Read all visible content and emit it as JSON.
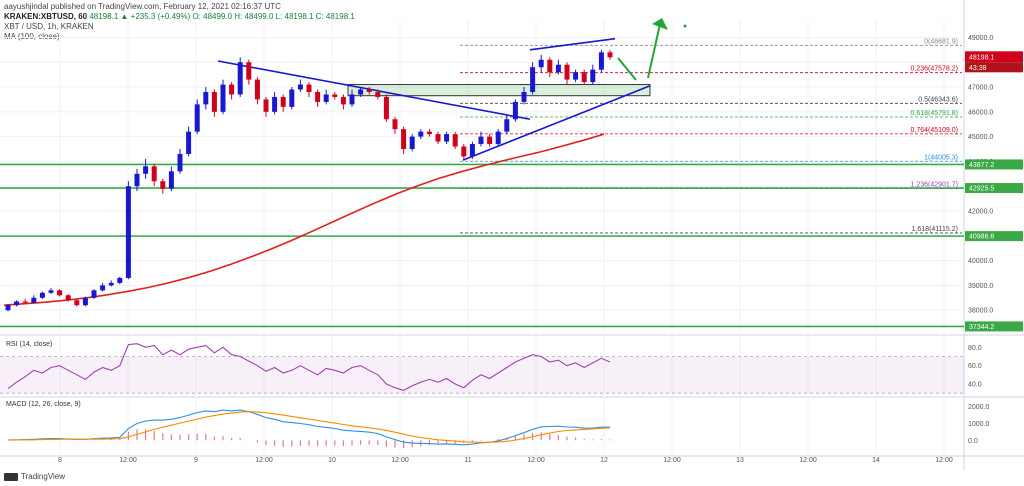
{
  "header": {
    "publisher": "aayushjindal published on TradingView.com, February 12, 2021 02:16:37 UTC",
    "symbol_line": "KRAKEN:XBTUSD, 60",
    "change": "48198.1 ▲ +235.3 (+0.49%) O: 48499.0 H: 48499.0 L: 48198.1 C: 48198.1",
    "title": "XBT / USD, 1h, KRAKEN",
    "ma_label": "MA (100, close)"
  },
  "footer": {
    "brand": "TradingView"
  },
  "colors": {
    "up": "#1a17d1",
    "down": "#d0021b",
    "ma": "#e02020",
    "trend": "#1a17d1",
    "support": "#3aa845",
    "arrow": "#22a63a",
    "rsi": "#a040b0",
    "macd": "#2f8fe0",
    "signal": "#ff8a00",
    "fib": "#888888"
  },
  "chart_data": [
    {
      "type": "candlestick",
      "title": "XBT / USD, 1h, KRAKEN",
      "x_ticks": [
        "8",
        "12:00",
        "9",
        "12:00",
        "10",
        "12:00",
        "11",
        "12:00",
        "12",
        "12:00",
        "13",
        "12:00",
        "14",
        "12:00"
      ],
      "y_ticks": [
        38000.0,
        39000.0,
        40000.0,
        41000.0,
        42000.0,
        43000.0,
        44000.0,
        45000.0,
        46000.0,
        47000.0,
        48000.0,
        49000.0
      ],
      "ylim": [
        37200,
        49300
      ],
      "candles": [
        [
          38000,
          38200,
          37950,
          38250
        ],
        [
          38200,
          38350,
          38150,
          38400
        ],
        [
          38350,
          38300,
          38250,
          38450
        ],
        [
          38300,
          38500,
          38280,
          38600
        ],
        [
          38500,
          38700,
          38450,
          38750
        ],
        [
          38700,
          38800,
          38650,
          38900
        ],
        [
          38800,
          38600,
          38550,
          38850
        ],
        [
          38600,
          38400,
          38350,
          38650
        ],
        [
          38400,
          38200,
          38150,
          38450
        ],
        [
          38200,
          38500,
          38150,
          38550
        ],
        [
          38500,
          38800,
          38450,
          38850
        ],
        [
          38800,
          39000,
          38750,
          39100
        ],
        [
          39000,
          39100,
          38950,
          39200
        ],
        [
          39100,
          39300,
          39050,
          39350
        ],
        [
          39300,
          43000,
          39250,
          43200
        ],
        [
          43000,
          43500,
          42800,
          43700
        ],
        [
          43500,
          43800,
          43300,
          44100
        ],
        [
          43800,
          43200,
          43000,
          43900
        ],
        [
          43200,
          42900,
          42700,
          43300
        ],
        [
          42900,
          43600,
          42800,
          43800
        ],
        [
          43600,
          44300,
          43500,
          44500
        ],
        [
          44300,
          45200,
          44200,
          45400
        ],
        [
          45200,
          46300,
          45100,
          46500
        ],
        [
          46300,
          46800,
          46100,
          47000
        ],
        [
          46800,
          46000,
          45800,
          46900
        ],
        [
          46000,
          47100,
          45900,
          47300
        ],
        [
          47100,
          46700,
          46500,
          47200
        ],
        [
          46700,
          48000,
          46600,
          48200
        ],
        [
          48000,
          47300,
          47100,
          48100
        ],
        [
          47300,
          46500,
          46300,
          47400
        ],
        [
          46500,
          46000,
          45800,
          46600
        ],
        [
          46000,
          46600,
          45900,
          46800
        ],
        [
          46600,
          46200,
          46000,
          46700
        ],
        [
          46200,
          46900,
          46100,
          47000
        ],
        [
          46900,
          47100,
          46800,
          47300
        ],
        [
          47100,
          46800,
          46600,
          47200
        ],
        [
          46800,
          46400,
          46200,
          46900
        ],
        [
          46400,
          46700,
          46300,
          46900
        ],
        [
          46700,
          46600,
          46500,
          46800
        ],
        [
          46600,
          46300,
          46100,
          46700
        ],
        [
          46300,
          46700,
          46200,
          46900
        ],
        [
          46700,
          46900,
          46600,
          47000
        ],
        [
          46900,
          46800,
          46700,
          47000
        ],
        [
          46800,
          46600,
          46500,
          46900
        ],
        [
          46600,
          45700,
          45600,
          46700
        ],
        [
          45700,
          45300,
          45100,
          45800
        ],
        [
          45300,
          44500,
          44300,
          45400
        ],
        [
          44500,
          45000,
          44400,
          45100
        ],
        [
          45000,
          45200,
          44900,
          45300
        ],
        [
          45200,
          45100,
          45000,
          45300
        ],
        [
          45100,
          44800,
          44700,
          45200
        ],
        [
          44800,
          45100,
          44700,
          45200
        ],
        [
          45100,
          44600,
          44500,
          45200
        ],
        [
          44600,
          44200,
          44100,
          44700
        ],
        [
          44200,
          44700,
          44100,
          44800
        ],
        [
          44700,
          45000,
          44600,
          45200
        ],
        [
          45000,
          44700,
          44600,
          45100
        ],
        [
          44700,
          45200,
          44600,
          45300
        ],
        [
          45200,
          45700,
          45100,
          45900
        ],
        [
          45700,
          46400,
          45600,
          46500
        ],
        [
          46400,
          46800,
          46300,
          47000
        ],
        [
          46800,
          47800,
          46700,
          48000
        ],
        [
          47800,
          48100,
          47600,
          48300
        ],
        [
          48100,
          47600,
          47400,
          48200
        ],
        [
          47600,
          47900,
          47500,
          48100
        ],
        [
          47900,
          47300,
          47100,
          48000
        ],
        [
          47300,
          47600,
          47200,
          47700
        ],
        [
          47600,
          47200,
          47100,
          47700
        ],
        [
          47200,
          47700,
          47100,
          47900
        ],
        [
          47700,
          48400,
          47600,
          48500
        ],
        [
          48400,
          48200,
          48100,
          48500
        ]
      ],
      "ma100": [
        38200,
        38260,
        38320,
        38400,
        38500,
        38620,
        38760,
        38920,
        39110,
        39330,
        39580,
        39860,
        40170,
        40500,
        40850,
        41220,
        41600,
        41980,
        42350,
        42700,
        43020,
        43310,
        43560,
        43790,
        44000,
        44200,
        44400,
        44620,
        44850,
        45100
      ],
      "annotations": {
        "fib_levels": [
          {
            "label": "0(48681.9)",
            "value": 48681.9,
            "color": "#888888"
          },
          {
            "label": "0.236(47578.2)",
            "value": 47578.2,
            "color": "#d0021b"
          },
          {
            "label": "0.5(46343.6)",
            "value": 46343.6,
            "color": "#444444"
          },
          {
            "label": "0.618(45791.8)",
            "value": 45791.8,
            "color": "#2aa845"
          },
          {
            "label": "0.764(45109.0)",
            "value": 45109.0,
            "color": "#d0021b"
          },
          {
            "label": "1(44005.3)",
            "value": 44005.3,
            "color": "#2f8fe0"
          },
          {
            "label": "1.236(42901.7)",
            "value": 42901.7,
            "color": "#a040b0"
          },
          {
            "label": "1.618(41115.2)",
            "value": 41115.2,
            "color": "#444444"
          }
        ],
        "support_lines": [
          43877.2,
          42925.5,
          40986.6,
          37344.2
        ],
        "price_box": "48198.1",
        "countdown": "43:38",
        "support_labels": [
          "43877.2",
          "42925.5",
          "40986.6",
          "37344.2"
        ],
        "zone": [
          46650,
          47100
        ]
      }
    },
    {
      "type": "line",
      "title": "RSI (14, close)",
      "y_ticks": [
        40.0,
        60.0,
        80.0
      ],
      "ylim": [
        28,
        88
      ],
      "band": [
        30,
        70
      ],
      "values": [
        35,
        42,
        48,
        55,
        52,
        58,
        60,
        55,
        50,
        45,
        53,
        58,
        55,
        60,
        83,
        84,
        80,
        82,
        72,
        77,
        72,
        78,
        80,
        82,
        74,
        80,
        72,
        70,
        65,
        60,
        54,
        58,
        52,
        55,
        60,
        55,
        50,
        57,
        55,
        52,
        58,
        60,
        55,
        50,
        40,
        36,
        33,
        38,
        42,
        45,
        42,
        46,
        40,
        36,
        44,
        50,
        46,
        52,
        58,
        64,
        68,
        72,
        70,
        64,
        66,
        60,
        63,
        58,
        63,
        68,
        64
      ]
    },
    {
      "type": "line",
      "title": "MACD (12, 26, close, 9)",
      "y_ticks": [
        0.0,
        1000.0,
        2000.0
      ],
      "ylim": [
        -700,
        2400
      ],
      "macd": [
        20,
        30,
        40,
        60,
        80,
        100,
        90,
        70,
        50,
        60,
        90,
        120,
        140,
        170,
        700,
        1000,
        1150,
        1200,
        1200,
        1250,
        1350,
        1500,
        1650,
        1750,
        1700,
        1800,
        1750,
        1800,
        1700,
        1550,
        1350,
        1250,
        1100,
        1050,
        1000,
        930,
        820,
        770,
        700,
        600,
        560,
        530,
        480,
        400,
        200,
        40,
        -110,
        -170,
        -190,
        -200,
        -230,
        -220,
        -240,
        -270,
        -230,
        -150,
        -120,
        -30,
        100,
        280,
        450,
        650,
        800,
        820,
        840,
        790,
        780,
        720,
        730,
        780,
        790
      ],
      "signal": [
        10,
        15,
        22,
        30,
        40,
        52,
        60,
        64,
        63,
        62,
        66,
        72,
        80,
        90,
        200,
        350,
        500,
        650,
        780,
        900,
        1020,
        1140,
        1260,
        1380,
        1470,
        1560,
        1620,
        1680,
        1700,
        1690,
        1640,
        1580,
        1500,
        1420,
        1340,
        1260,
        1180,
        1100,
        1020,
        940,
        870,
        800,
        740,
        680,
        590,
        480,
        360,
        250,
        160,
        90,
        30,
        -10,
        -50,
        -90,
        -110,
        -120,
        -120,
        -100,
        -60,
        10,
        100,
        210,
        330,
        430,
        520,
        580,
        620,
        650,
        680,
        710,
        740
      ],
      "labels": [
        "12",
        "26",
        "close",
        "9"
      ]
    }
  ]
}
